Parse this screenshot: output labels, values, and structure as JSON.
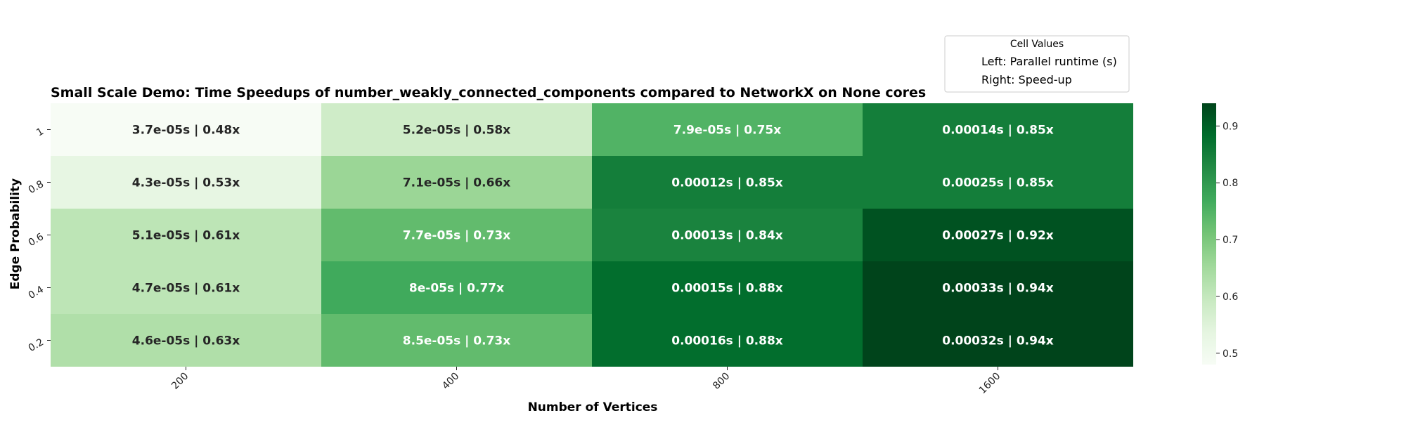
{
  "chart_data": {
    "type": "heatmap",
    "title": "Small Scale Demo: Time Speedups of number_weakly_connected_components compared to NetworkX on None cores",
    "xlabel": "Number of Vertices",
    "ylabel": "Edge Probability",
    "x_categories": [
      "200",
      "400",
      "800",
      "1600"
    ],
    "y_categories": [
      "1",
      "0.8",
      "0.6",
      "0.4",
      "0.2"
    ],
    "values": [
      [
        0.48,
        0.58,
        0.75,
        0.85
      ],
      [
        0.53,
        0.66,
        0.85,
        0.85
      ],
      [
        0.61,
        0.73,
        0.84,
        0.92
      ],
      [
        0.61,
        0.77,
        0.88,
        0.94
      ],
      [
        0.63,
        0.73,
        0.88,
        0.94
      ]
    ],
    "cell_labels": [
      [
        "3.7e-05s | 0.48x",
        "5.2e-05s | 0.58x",
        "7.9e-05s | 0.75x",
        "0.00014s | 0.85x"
      ],
      [
        "4.3e-05s | 0.53x",
        "7.1e-05s | 0.66x",
        "0.00012s | 0.85x",
        "0.00025s | 0.85x"
      ],
      [
        "5.1e-05s | 0.61x",
        "7.7e-05s | 0.73x",
        "0.00013s | 0.84x",
        "0.00027s | 0.92x"
      ],
      [
        "4.7e-05s | 0.61x",
        "8e-05s | 0.77x",
        "0.00015s | 0.88x",
        "0.00033s | 0.94x"
      ],
      [
        "4.6e-05s | 0.63x",
        "8.5e-05s | 0.73x",
        "0.00016s | 0.88x",
        "0.00032s | 0.94x"
      ]
    ],
    "colormap": "Greens",
    "colorbar": {
      "min": 0.48,
      "max": 0.94,
      "ticks": [
        "0.5",
        "0.6",
        "0.7",
        "0.8",
        "0.9"
      ]
    },
    "legend": {
      "title": "Cell Values",
      "items": [
        "Left: Parallel runtime (s)",
        "Right: Speed-up"
      ],
      "position": "upper-right"
    }
  }
}
